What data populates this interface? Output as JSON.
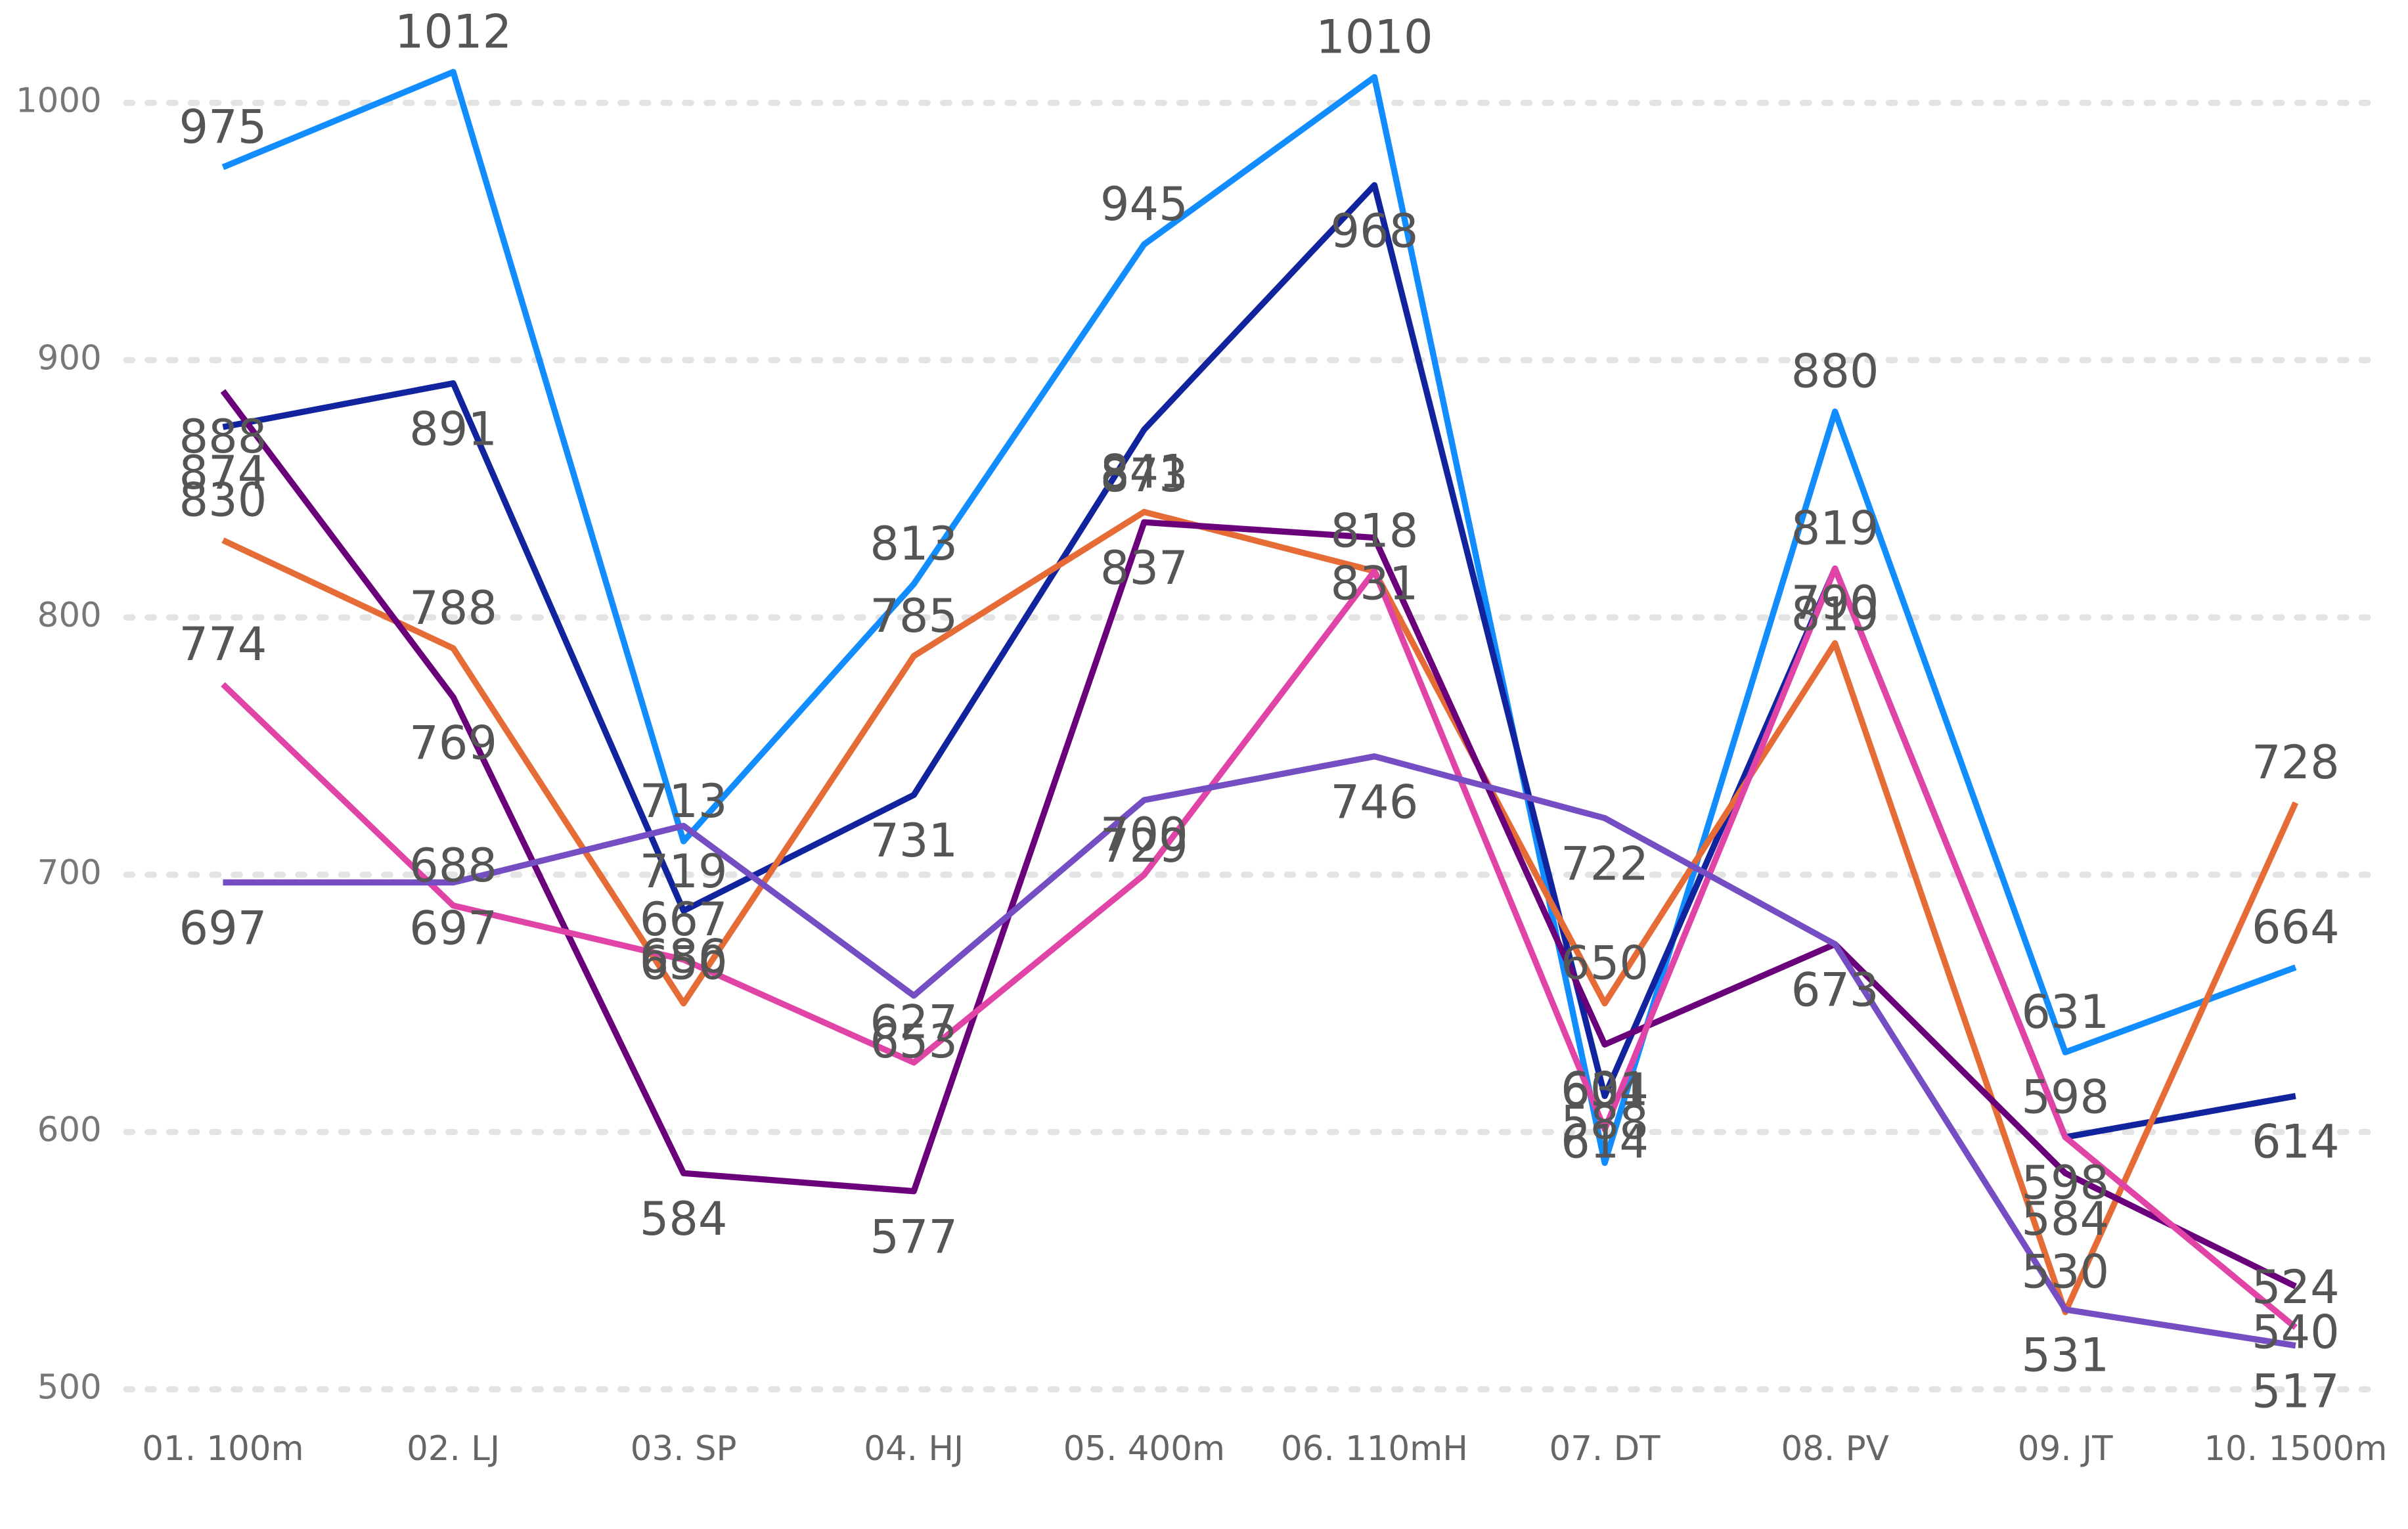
{
  "chart_data": {
    "type": "line",
    "categories": [
      "01. 100m",
      "02. LJ",
      "03. SP",
      "04. HJ",
      "05. 400m",
      "06. 110mH",
      "07. DT",
      "08. PV",
      "09. JT",
      "10. 1500m"
    ],
    "series": [
      {
        "color": "#118DFF",
        "values": [
          975,
          1012,
          713,
          813,
          945,
          1010,
          588,
          880,
          631,
          664
        ]
      },
      {
        "color": "#12239E",
        "values": [
          874,
          891,
          686,
          731,
          873,
          968,
          614,
          819,
          598,
          614
        ]
      },
      {
        "color": "#E66C37",
        "values": [
          830,
          788,
          650,
          785,
          841,
          818,
          650,
          790,
          530,
          728
        ]
      },
      {
        "color": "#6B007B",
        "values": [
          888,
          769,
          584,
          577,
          837,
          831,
          634,
          673,
          584,
          540
        ]
      },
      {
        "color": "#E044A7",
        "values": [
          774,
          688,
          667,
          627,
          700,
          818,
          601,
          819,
          598,
          524
        ]
      },
      {
        "color": "#744EC2",
        "values": [
          697,
          697,
          719,
          653,
          729,
          746,
          722,
          673,
          531,
          517
        ]
      }
    ],
    "ylim": [
      500,
      1000
    ],
    "yticks": [
      500,
      600,
      700,
      800,
      900,
      1000
    ],
    "grid": true
  }
}
